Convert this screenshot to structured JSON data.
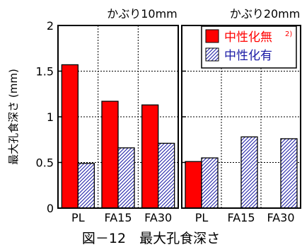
{
  "caption": "図－12　最大孔食深さ",
  "chart_data": [
    {
      "type": "bar",
      "title": "かぶり10mm",
      "ylabel": "最大孔食深さ (mm)",
      "ylim": [
        0,
        2
      ],
      "yticks": [
        "0",
        "0.5",
        "1",
        "1.5",
        "2"
      ],
      "categories": [
        "PL",
        "FA15",
        "FA30"
      ],
      "series": [
        {
          "name": "中性化無",
          "note": "2)",
          "color": "#ff0000",
          "fill": "solid",
          "values": [
            1.57,
            1.17,
            1.13
          ]
        },
        {
          "name": "中性化有",
          "color": "#1a1aa6",
          "fill": "hatch",
          "values": [
            0.49,
            0.66,
            0.71
          ]
        }
      ],
      "grid": true,
      "legend": "none"
    },
    {
      "type": "bar",
      "title": "かぶり20mm",
      "ylim": [
        0,
        2
      ],
      "categories": [
        "PL",
        "FA15",
        "FA30"
      ],
      "series": [
        {
          "name": "中性化無",
          "note": "2)",
          "color": "#ff0000",
          "fill": "solid",
          "values": [
            0.51,
            null,
            null
          ]
        },
        {
          "name": "中性化有",
          "color": "#1a1aa6",
          "fill": "hatch",
          "values": [
            0.55,
            0.78,
            0.76
          ]
        }
      ],
      "grid": true,
      "legend": "top-right"
    }
  ]
}
